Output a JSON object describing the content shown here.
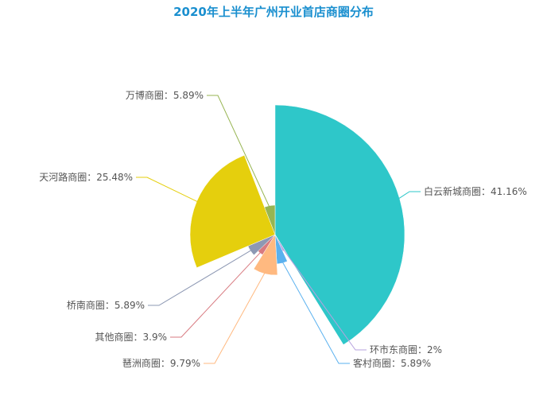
{
  "chart_data": {
    "type": "pie",
    "variant": "rose",
    "title": "2020年上半年广州开业首店商圈分布",
    "title_color": "#1a8fcf",
    "slices": [
      {
        "name": "白云新城商圈",
        "value": 41.16,
        "label": "白云新城商圈：41.16%",
        "color": "#2ec7c9"
      },
      {
        "name": "环市东商圈",
        "value": 2,
        "label": "环市东商圈：2%",
        "color": "#b6a2de"
      },
      {
        "name": "客村商圈",
        "value": 5.89,
        "label": "客村商圈：5.89%",
        "color": "#5ab1ef"
      },
      {
        "name": "琶洲商圈",
        "value": 9.79,
        "label": "琶洲商圈：9.79%",
        "color": "#ffb980"
      },
      {
        "name": "其他商圈",
        "value": 3.9,
        "label": "其他商圈：3.9%",
        "color": "#d87a80"
      },
      {
        "name": "桥南商圈",
        "value": 5.89,
        "label": "桥南商圈：5.89%",
        "color": "#8d98b3"
      },
      {
        "name": "天河路商圈",
        "value": 25.48,
        "label": "天河路商圈：25.48%",
        "color": "#e5cf0d"
      },
      {
        "name": "万博商圈",
        "value": 5.89,
        "label": "万博商圈：5.89%",
        "color": "#97b552"
      }
    ]
  }
}
